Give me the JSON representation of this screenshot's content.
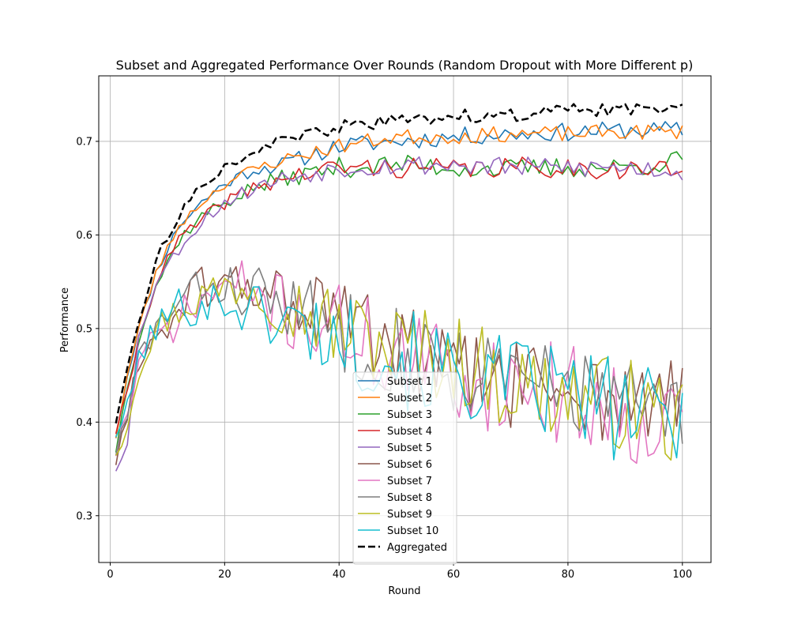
{
  "chart_data": {
    "type": "line",
    "title": "Subset and Aggregated Performance Over Rounds (Random Dropout with More Different p)",
    "xlabel": "Round",
    "ylabel": "Performance",
    "xlim": [
      -2,
      105
    ],
    "ylim": [
      0.25,
      0.77
    ],
    "x_ticks": [
      0,
      20,
      40,
      60,
      80,
      100
    ],
    "y_ticks": [
      0.3,
      0.4,
      0.5,
      0.6,
      0.7
    ],
    "x_tick_labels": [
      "0",
      "20",
      "40",
      "60",
      "80",
      "100"
    ],
    "y_tick_labels": [
      "0.3",
      "0.4",
      "0.5",
      "0.6",
      "0.7"
    ],
    "grid": true,
    "legend_position": "lower-center",
    "x_knots": [
      1,
      3,
      5,
      8,
      12,
      16,
      20,
      25,
      30,
      40,
      50,
      60,
      70,
      80,
      90,
      100
    ],
    "series": [
      {
        "name": "Subset 1",
        "color": "#1f77b4",
        "style": "solid",
        "amp": 0.007,
        "seed": 11,
        "knots": [
          0.385,
          0.45,
          0.5,
          0.56,
          0.61,
          0.635,
          0.655,
          0.67,
          0.675,
          0.695,
          0.7,
          0.705,
          0.708,
          0.71,
          0.712,
          0.712
        ]
      },
      {
        "name": "Subset 2",
        "color": "#ff7f0e",
        "style": "solid",
        "amp": 0.006,
        "seed": 23,
        "knots": [
          0.385,
          0.45,
          0.5,
          0.56,
          0.61,
          0.635,
          0.655,
          0.67,
          0.68,
          0.695,
          0.705,
          0.705,
          0.708,
          0.708,
          0.71,
          0.71
        ]
      },
      {
        "name": "Subset 3",
        "color": "#2ca02c",
        "style": "solid",
        "amp": 0.008,
        "seed": 37,
        "knots": [
          0.37,
          0.44,
          0.49,
          0.545,
          0.595,
          0.62,
          0.635,
          0.65,
          0.66,
          0.672,
          0.675,
          0.672,
          0.67,
          0.672,
          0.672,
          0.68
        ]
      },
      {
        "name": "Subset 4",
        "color": "#d62728",
        "style": "solid",
        "amp": 0.008,
        "seed": 41,
        "knots": [
          0.39,
          0.43,
          0.49,
          0.55,
          0.595,
          0.615,
          0.635,
          0.65,
          0.66,
          0.672,
          0.672,
          0.67,
          0.672,
          0.672,
          0.67,
          0.67
        ]
      },
      {
        "name": "Subset 5",
        "color": "#9467bd",
        "style": "solid",
        "amp": 0.008,
        "seed": 53,
        "knots": [
          0.35,
          0.38,
          0.49,
          0.55,
          0.585,
          0.615,
          0.635,
          0.65,
          0.66,
          0.672,
          0.675,
          0.675,
          0.672,
          0.672,
          0.672,
          0.668
        ]
      },
      {
        "name": "Subset 6",
        "color": "#8c564b",
        "style": "solid",
        "amp": 0.028,
        "seed": 61,
        "knots": [
          0.36,
          0.4,
          0.47,
          0.49,
          0.52,
          0.545,
          0.545,
          0.545,
          0.535,
          0.51,
          0.48,
          0.45,
          0.44,
          0.44,
          0.42,
          0.42
        ]
      },
      {
        "name": "Subset 7",
        "color": "#e377c2",
        "style": "solid",
        "amp": 0.03,
        "seed": 71,
        "knots": [
          0.37,
          0.41,
          0.46,
          0.49,
          0.51,
          0.53,
          0.545,
          0.54,
          0.52,
          0.5,
          0.47,
          0.45,
          0.44,
          0.43,
          0.41,
          0.4
        ]
      },
      {
        "name": "Subset 8",
        "color": "#7f7f7f",
        "style": "solid",
        "amp": 0.028,
        "seed": 83,
        "knots": [
          0.37,
          0.4,
          0.47,
          0.5,
          0.525,
          0.545,
          0.545,
          0.54,
          0.525,
          0.5,
          0.48,
          0.46,
          0.44,
          0.44,
          0.42,
          0.4
        ]
      },
      {
        "name": "Subset 9",
        "color": "#bcbd22",
        "style": "solid",
        "amp": 0.028,
        "seed": 97,
        "knots": [
          0.37,
          0.4,
          0.46,
          0.5,
          0.52,
          0.535,
          0.545,
          0.55,
          0.53,
          0.5,
          0.48,
          0.47,
          0.44,
          0.43,
          0.42,
          0.4
        ]
      },
      {
        "name": "Subset 10",
        "color": "#17becf",
        "style": "solid",
        "amp": 0.03,
        "seed": 101,
        "knots": [
          0.39,
          0.41,
          0.47,
          0.5,
          0.525,
          0.525,
          0.53,
          0.52,
          0.51,
          0.49,
          0.47,
          0.45,
          0.44,
          0.43,
          0.41,
          0.4
        ]
      },
      {
        "name": "Aggregated",
        "color": "#000000",
        "style": "dashed",
        "amp": 0.005,
        "seed": 113,
        "knots": [
          0.4,
          0.46,
          0.505,
          0.575,
          0.62,
          0.655,
          0.672,
          0.69,
          0.7,
          0.715,
          0.722,
          0.727,
          0.728,
          0.733,
          0.733,
          0.74
        ]
      }
    ]
  }
}
